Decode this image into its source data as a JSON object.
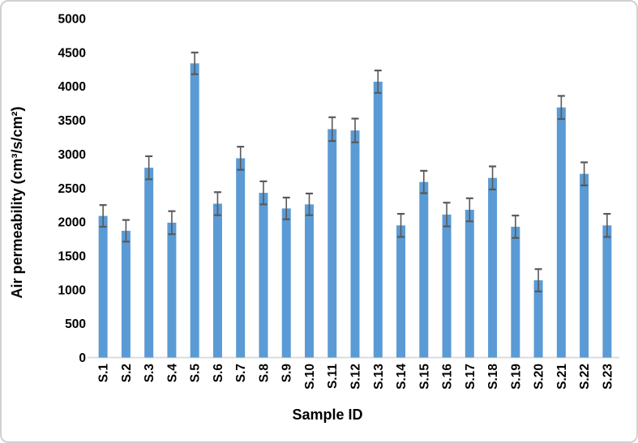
{
  "chart_data": {
    "type": "bar",
    "xlabel": "Sample ID",
    "ylabel": "Air permeability (cm³/s/cm²)",
    "categories": [
      "S.1",
      "S.2",
      "S.3",
      "S.4",
      "S.5",
      "S.6",
      "S.7",
      "S.8",
      "S.9",
      "S.10",
      "S.11",
      "S.12",
      "S.13",
      "S.14",
      "S.15",
      "S.16",
      "S.17",
      "S.18",
      "S.19",
      "S.20",
      "S.21",
      "S.22",
      "S.23"
    ],
    "values": [
      2090,
      1870,
      2800,
      1990,
      4340,
      2270,
      2940,
      2430,
      2200,
      2260,
      3370,
      3350,
      4070,
      1950,
      2590,
      2110,
      2180,
      2650,
      1930,
      1140,
      3690,
      2710,
      1950
    ],
    "errors": [
      160,
      160,
      170,
      170,
      160,
      170,
      170,
      170,
      160,
      160,
      175,
      175,
      165,
      170,
      165,
      175,
      170,
      170,
      165,
      165,
      170,
      170,
      170
    ],
    "ylim": [
      0,
      5000
    ],
    "ytick_step": 500,
    "grid": false,
    "legend": "none",
    "bar_color": "#5B9BD5",
    "error_color": "#595959",
    "axis_line_color": "#D9D9D9",
    "text_color": "#000000"
  }
}
